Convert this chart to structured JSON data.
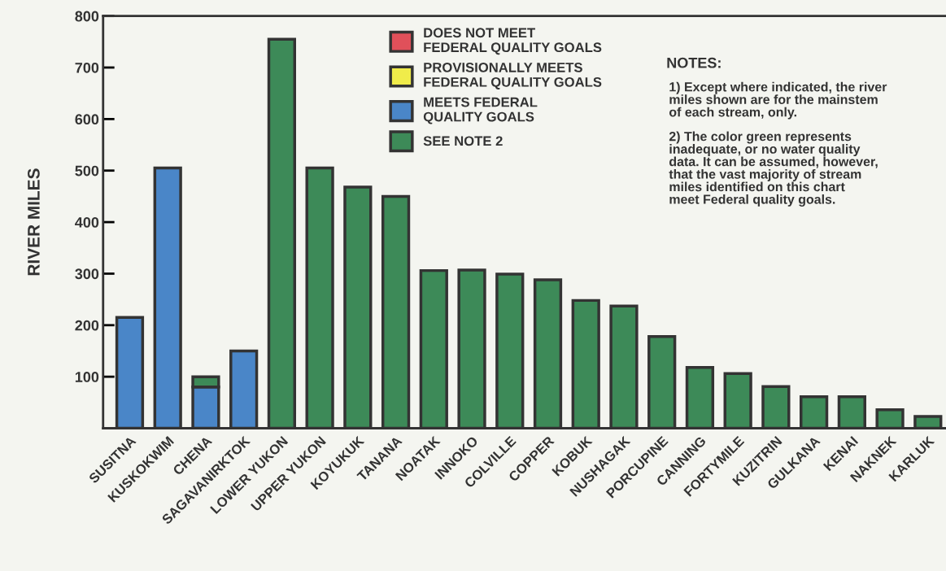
{
  "chart_data": {
    "type": "bar",
    "stacked": true,
    "ylabel": "RIVER MILES",
    "categories": [
      "SUSITNA",
      "KUSKOKWIM",
      "CHENA",
      "SAGAVANIRKTOK",
      "LOWER YUKON",
      "UPPER YUKON",
      "KOYUKUK",
      "TANANA",
      "NOATAK",
      "INNOKO",
      "COLVILLE",
      "COPPER",
      "KOBUK",
      "NUSHAGAK",
      "PORCUPINE",
      "CANNING",
      "FORTYMILE",
      "KUZITRIN",
      "GULKANA",
      "KENAI",
      "NAKNEK",
      "KARLUK"
    ],
    "series": [
      {
        "name": "DOES NOT MEET\nFEDERAL QUALITY GOALS",
        "color": "#e0505a",
        "values": [
          null,
          null,
          null,
          null,
          null,
          null,
          null,
          null,
          null,
          null,
          null,
          null,
          null,
          null,
          null,
          null,
          null,
          null,
          null,
          null,
          null,
          null
        ]
      },
      {
        "name": "PROVISIONALLY MEETS\nFEDERAL QUALITY GOALS",
        "color": "#f0ec4a",
        "values": [
          null,
          null,
          null,
          null,
          null,
          null,
          null,
          null,
          null,
          null,
          null,
          null,
          null,
          null,
          null,
          null,
          null,
          null,
          null,
          null,
          null,
          null
        ]
      },
      {
        "name": "MEETS FEDERAL\nQUALITY GOALS",
        "color": "#4a86c8",
        "values": [
          215,
          505,
          80,
          150,
          null,
          null,
          null,
          null,
          null,
          null,
          null,
          null,
          null,
          null,
          null,
          null,
          null,
          null,
          null,
          null,
          null,
          null
        ]
      },
      {
        "name": "SEE NOTE 2",
        "color": "#3d8a58",
        "values": [
          null,
          null,
          20,
          null,
          755,
          505,
          468,
          450,
          306,
          307,
          299,
          288,
          248,
          237,
          178,
          118,
          106,
          81,
          61,
          61,
          36,
          23
        ]
      }
    ],
    "ylim": [
      0,
      800
    ],
    "yticks": [
      100,
      200,
      300,
      400,
      500,
      600,
      700,
      800
    ],
    "grid": false,
    "legend": "top",
    "annotations": [
      "NOTES:",
      "1) Except where indicated, the river\nmiles shown are for the mainstem\nof each stream, only.",
      "2) The color green represents\ninadequate, or no water quality\ndata. It can be assumed, however,\nthat the vast majority of stream\nmiles identified on this chart\nmeet Federal quality goals."
    ]
  }
}
